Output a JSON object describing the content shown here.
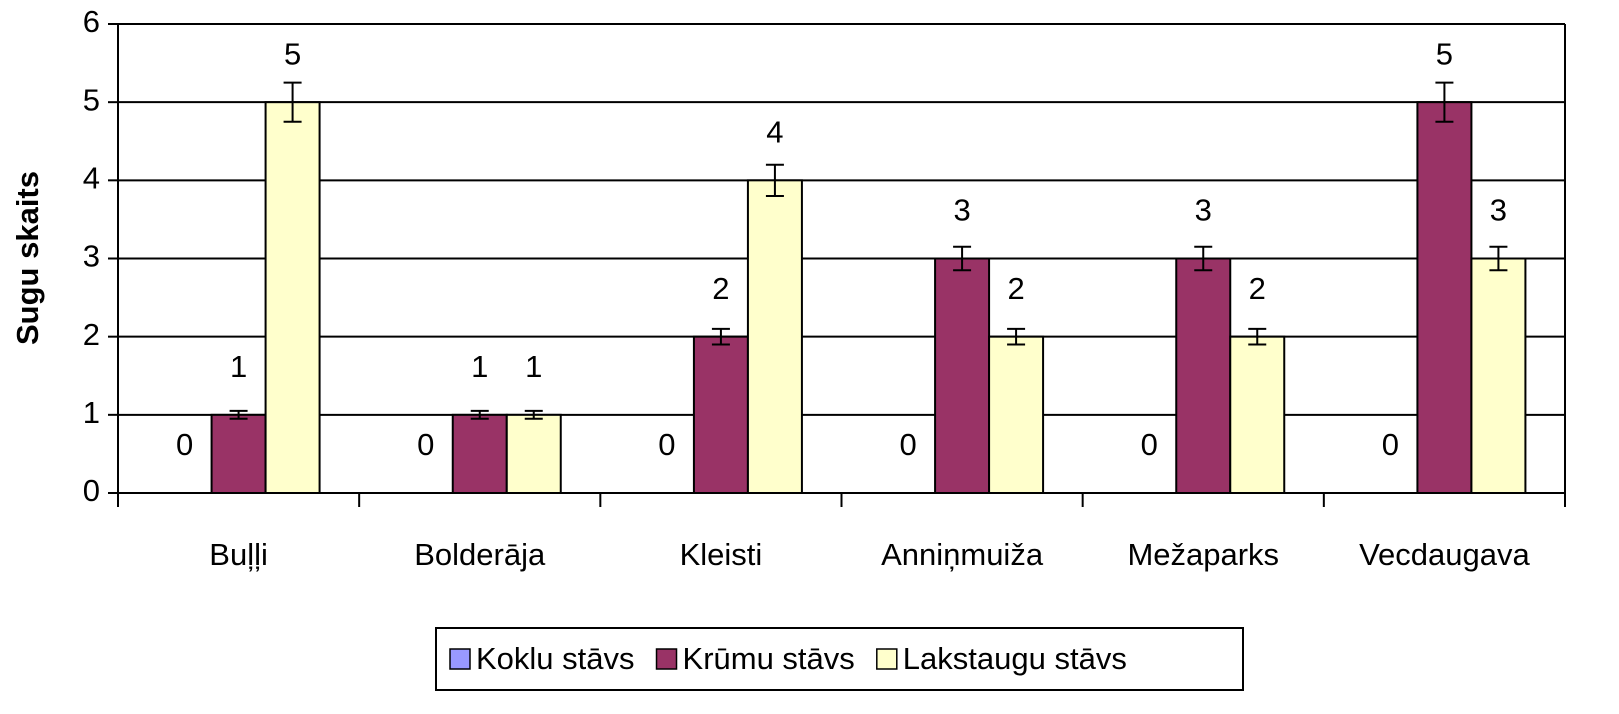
{
  "chart_data": {
    "type": "bar",
    "y_label": "Sugu skaits",
    "categories": [
      "Buļļi",
      "Bolderāja",
      "Kleisti",
      "Anniņmuiža",
      "Mežaparks",
      "Vecdaugava"
    ],
    "series": [
      {
        "name": "Koklu stāvs",
        "color": "#9999ff",
        "values": [
          0,
          0,
          0,
          0,
          0,
          0
        ],
        "errors": [
          0,
          0,
          0,
          0,
          0,
          0
        ]
      },
      {
        "name": "Krūmu stāvs",
        "color": "#993366",
        "values": [
          1,
          1,
          2,
          3,
          3,
          5
        ],
        "errors": [
          0.05,
          0.05,
          0.1,
          0.15,
          0.15,
          0.25
        ]
      },
      {
        "name": "Lakstaugu stāvs",
        "color": "#ffffcc",
        "values": [
          5,
          1,
          4,
          2,
          2,
          3
        ],
        "errors": [
          0.25,
          0.05,
          0.2,
          0.1,
          0.1,
          0.15
        ]
      }
    ],
    "ylim": [
      0,
      6
    ],
    "yticks": [
      0,
      1,
      2,
      3,
      4,
      5,
      6
    ],
    "grid": true,
    "legend": "bottom"
  }
}
